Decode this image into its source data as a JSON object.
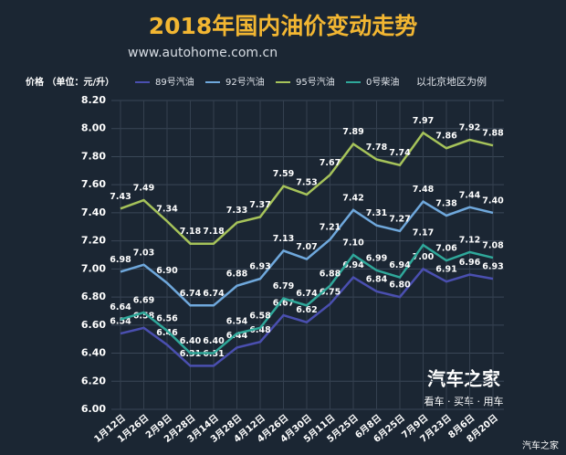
{
  "chart_data": {
    "type": "line",
    "title": "2018年国内油价变动走势",
    "subtitle": "www.autohome.com.cn",
    "y_label": "价格 （单位：元/升）",
    "note": "以北京地区为例",
    "logo": "汽车之家",
    "logo_tagline": "看车 · 买车 · 用车",
    "watermark": "汽车之家",
    "categories": [
      "1月12日",
      "1月26日",
      "2月9日",
      "2月28日",
      "3月14日",
      "3月28日",
      "4月12日",
      "4月26日",
      "4月30日",
      "5月11日",
      "5月25日",
      "6月8日",
      "6月25日",
      "7月9日",
      "7月23日",
      "8月6日",
      "8月20日"
    ],
    "series": [
      {
        "name": "89号汽油",
        "color": "#4a4fb0",
        "values": [
          6.54,
          6.58,
          6.46,
          6.31,
          6.31,
          6.44,
          6.48,
          6.67,
          6.62,
          6.75,
          6.94,
          6.84,
          6.8,
          7.0,
          6.91,
          6.96,
          6.93
        ],
        "value_labels": [
          "6.54",
          "6.58",
          "6.46",
          "6.31",
          "6.31",
          "6.44",
          "6.48",
          "6.67",
          "6.62",
          "6.75",
          "6.94",
          "6.84",
          "6.80",
          "7.00",
          "6.91",
          "6.96",
          "6.93"
        ]
      },
      {
        "name": "92号汽油",
        "color": "#6fa8dc",
        "values": [
          6.98,
          7.03,
          6.9,
          6.74,
          6.74,
          6.88,
          6.93,
          7.13,
          7.07,
          7.21,
          7.42,
          7.31,
          7.27,
          7.48,
          7.38,
          7.44,
          7.4
        ],
        "value_labels": [
          "6.98",
          "7.03",
          "6.90",
          "6.74",
          "6.74",
          "6.88",
          "6.93",
          "7.13",
          "7.07",
          "7.21",
          "7.42",
          "7.31",
          "7.27",
          "7.48",
          "7.38",
          "7.44",
          "7.40"
        ]
      },
      {
        "name": "95号汽油",
        "color": "#a6c35a",
        "values": [
          7.43,
          7.49,
          7.34,
          7.18,
          7.18,
          7.33,
          7.37,
          7.59,
          7.53,
          7.67,
          7.89,
          7.78,
          7.74,
          7.97,
          7.86,
          7.92,
          7.88
        ],
        "value_labels": [
          "7.43",
          "7.49",
          "7.34",
          "7.18",
          "7.18",
          "7.33",
          "7.37",
          "7.59",
          "7.53",
          "7.67",
          "7.89",
          "7.78",
          "7.74",
          "7.97",
          "7.86",
          "7.92",
          "7.88"
        ]
      },
      {
        "name": "0号柴油",
        "color": "#2fa89a",
        "values": [
          6.64,
          6.69,
          6.56,
          6.4,
          6.4,
          6.54,
          6.58,
          6.79,
          6.74,
          6.88,
          7.1,
          6.99,
          6.94,
          7.17,
          7.06,
          7.12,
          7.08
        ],
        "value_labels": [
          "6.64",
          "6.69",
          "6.56",
          "6.40",
          "6.40",
          "6.54",
          "6.58",
          "6.79",
          "6.74",
          "6.88",
          "7.10",
          "6.99",
          "6.94",
          "7.17",
          "7.06",
          "7.12",
          "7.08"
        ]
      }
    ],
    "ylim": [
      6.0,
      8.2
    ],
    "yticks": [
      {
        "value": 6.0,
        "label": "6.00"
      },
      {
        "value": 6.2,
        "label": "6.20"
      },
      {
        "value": 6.4,
        "label": "6.40"
      },
      {
        "value": 6.6,
        "label": "6.60"
      },
      {
        "value": 6.8,
        "label": "6.80"
      },
      {
        "value": 7.0,
        "label": "7.00"
      },
      {
        "value": 7.2,
        "label": "7.20"
      },
      {
        "value": 7.4,
        "label": "7.40"
      },
      {
        "value": 7.6,
        "label": "7.60"
      },
      {
        "value": 7.8,
        "label": "7.80"
      },
      {
        "value": 8.0,
        "label": "8.00"
      },
      {
        "value": 8.2,
        "label": "8.20"
      }
    ],
    "grid": true
  }
}
